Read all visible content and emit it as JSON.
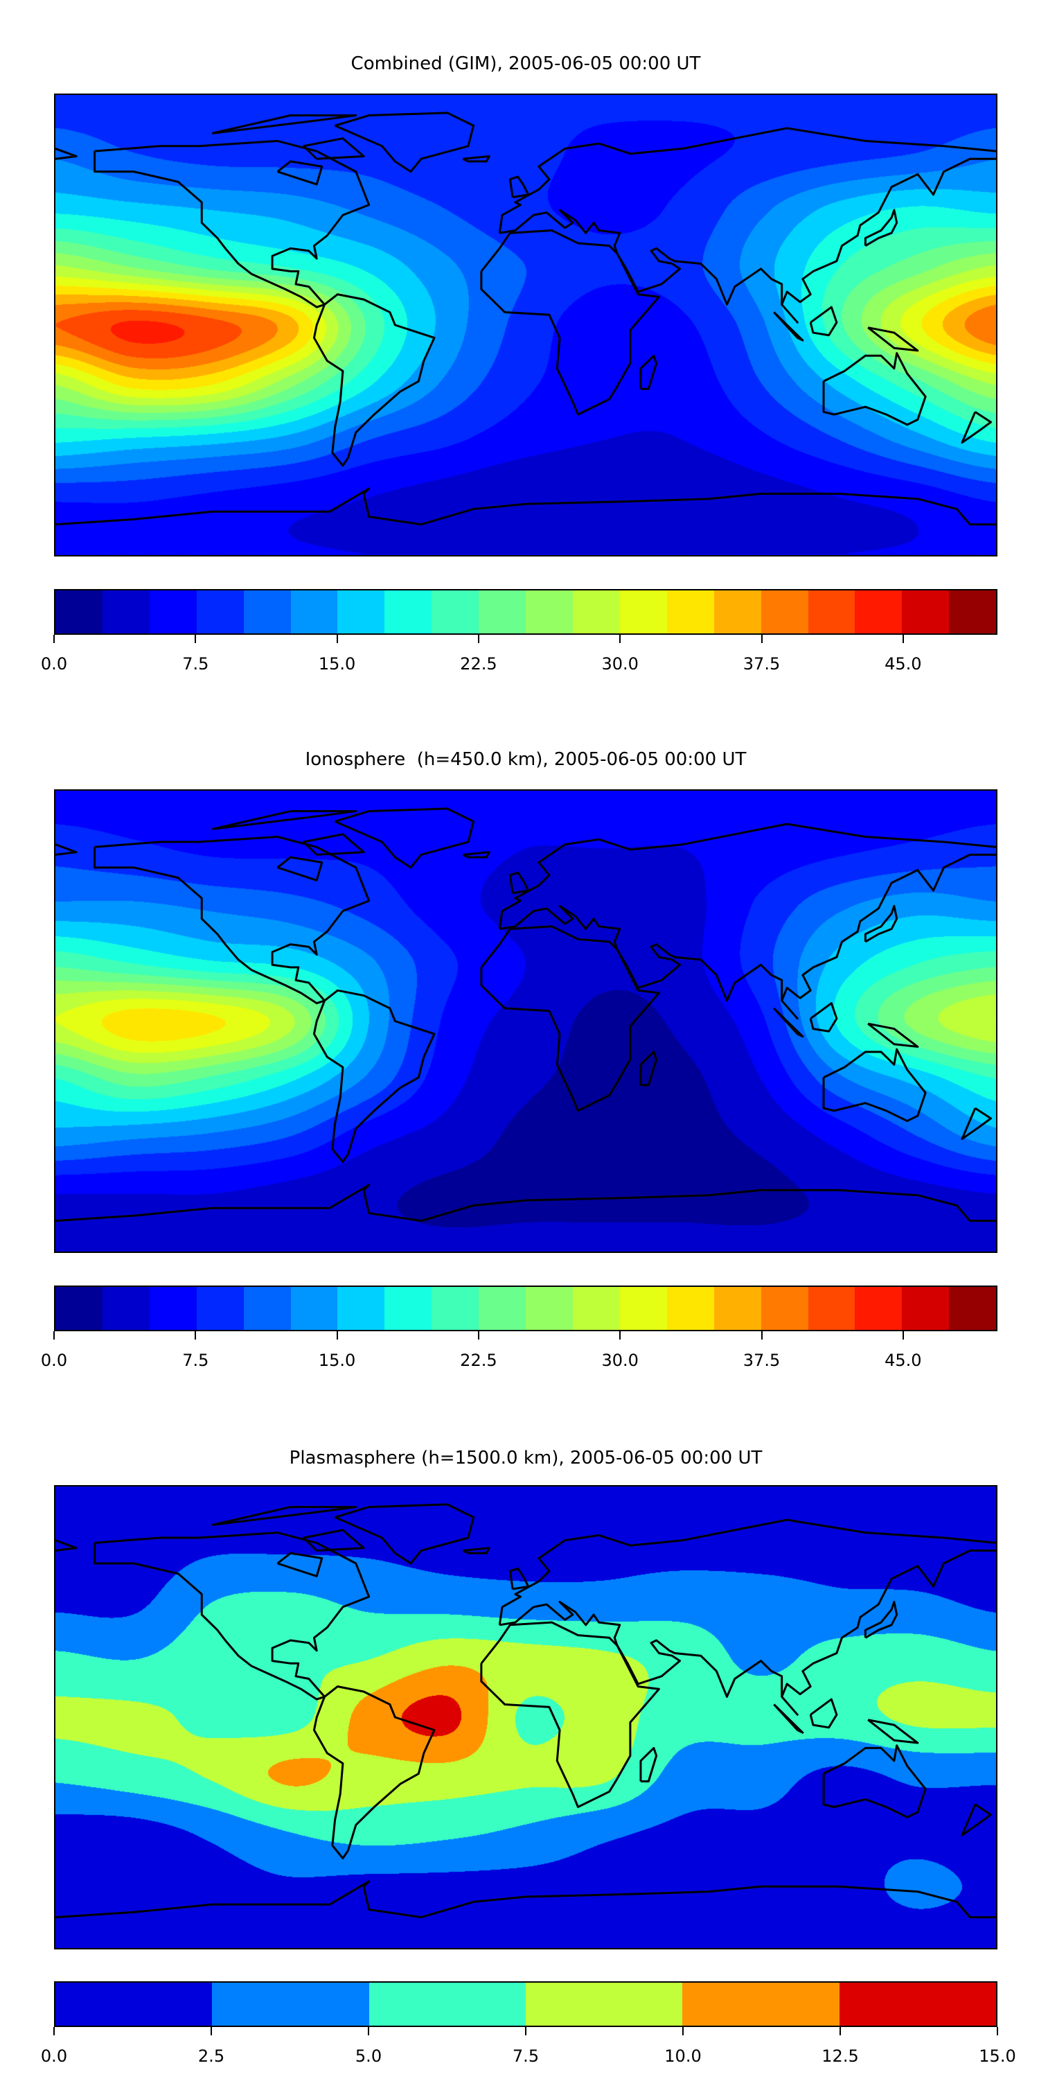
{
  "chart_data": [
    {
      "type": "heatmap",
      "title": "Combined (GIM), 2005-06-05 00:00 UT",
      "colorbar": {
        "min": 0,
        "max": 50,
        "step": 2.5,
        "colors": [
          "#000096",
          "#0000cd",
          "#0000ff",
          "#0028ff",
          "#0064ff",
          "#0096ff",
          "#00d0ff",
          "#16ffe1",
          "#40ffb7",
          "#6aff8d",
          "#94ff63",
          "#beff39",
          "#e4ff13",
          "#ffe600",
          "#ffb000",
          "#ff7a00",
          "#ff4800",
          "#ff1a00",
          "#d40000",
          "#960000"
        ],
        "tick_values": [
          0,
          7.5,
          15,
          22.5,
          30,
          37.5,
          45
        ],
        "ticks": [
          "0.0",
          "7.5",
          "15.0",
          "22.5",
          "30.0",
          "37.5",
          "45.0"
        ]
      },
      "grid": {
        "lons": [
          -180,
          -150,
          -120,
          -90,
          -60,
          -30,
          0,
          30,
          60,
          90,
          120,
          150,
          180
        ],
        "lats": [
          90,
          67.5,
          45,
          22.5,
          0,
          -22.5,
          -45,
          -67.5,
          -90
        ],
        "values": [
          [
            8,
            8,
            8,
            8,
            8,
            8,
            8,
            8,
            8,
            8,
            8,
            8,
            8
          ],
          [
            12,
            10,
            9,
            9,
            9,
            8,
            8,
            7,
            7,
            8,
            9,
            10,
            12
          ],
          [
            17,
            16,
            15,
            14,
            12,
            10,
            8,
            7,
            8,
            12,
            16,
            18,
            17
          ],
          [
            28,
            25,
            22,
            20,
            17,
            13,
            10,
            8,
            9,
            14,
            20,
            24,
            28
          ],
          [
            40,
            43,
            41,
            36,
            22,
            14,
            9,
            6,
            7,
            12,
            22,
            32,
            40
          ],
          [
            28,
            34,
            33,
            26,
            18,
            12,
            8,
            6,
            6,
            10,
            16,
            22,
            28
          ],
          [
            18,
            17,
            16,
            14,
            10,
            8,
            6,
            5,
            5,
            7,
            10,
            14,
            18
          ],
          [
            8,
            8,
            7,
            6,
            5,
            4,
            3,
            3,
            3,
            4,
            5,
            6,
            8
          ],
          [
            5,
            5,
            5,
            5,
            5,
            5,
            5,
            5,
            5,
            5,
            5,
            5,
            5
          ]
        ]
      }
    },
    {
      "type": "heatmap",
      "title": "Ionosphere  (h=450.0 km), 2005-06-05 00:00 UT",
      "colorbar": {
        "min": 0,
        "max": 50,
        "step": 2.5,
        "colors": [
          "#000096",
          "#0000cd",
          "#0000ff",
          "#0028ff",
          "#0064ff",
          "#0096ff",
          "#00d0ff",
          "#16ffe1",
          "#40ffb7",
          "#6aff8d",
          "#94ff63",
          "#beff39",
          "#e4ff13",
          "#ffe600",
          "#ffb000",
          "#ff7a00",
          "#ff4800",
          "#ff1a00",
          "#d40000",
          "#960000"
        ],
        "tick_values": [
          0,
          7.5,
          15,
          22.5,
          30,
          37.5,
          45
        ],
        "ticks": [
          "0.0",
          "7.5",
          "15.0",
          "22.5",
          "30.0",
          "37.5",
          "45.0"
        ]
      },
      "grid": {
        "lons": [
          -180,
          -150,
          -120,
          -90,
          -60,
          -30,
          0,
          30,
          60,
          90,
          120,
          150,
          180
        ],
        "lats": [
          90,
          67.5,
          45,
          22.5,
          0,
          -22.5,
          -45,
          -67.5,
          -90
        ],
        "values": [
          [
            6,
            6,
            6,
            6,
            6,
            6,
            6,
            6,
            6,
            6,
            6,
            6,
            6
          ],
          [
            9,
            8,
            7,
            7,
            7,
            6,
            5,
            5,
            5,
            6,
            7,
            8,
            9
          ],
          [
            13,
            13,
            12,
            11,
            9,
            6,
            4,
            3,
            4,
            8,
            12,
            14,
            13
          ],
          [
            22,
            20,
            18,
            17,
            13,
            8,
            5,
            3,
            4,
            9,
            16,
            20,
            22
          ],
          [
            30,
            34,
            33,
            28,
            15,
            7,
            4,
            2,
            3,
            7,
            18,
            26,
            30
          ],
          [
            20,
            24,
            22,
            18,
            12,
            6,
            3,
            2,
            2,
            5,
            12,
            16,
            20
          ],
          [
            14,
            13,
            12,
            10,
            6,
            4,
            2,
            2,
            2,
            3,
            6,
            10,
            14
          ],
          [
            5,
            5,
            5,
            4,
            3,
            2,
            2,
            2,
            2,
            2,
            3,
            4,
            5
          ],
          [
            3,
            3,
            3,
            3,
            3,
            3,
            3,
            3,
            3,
            3,
            3,
            3,
            3
          ]
        ]
      }
    },
    {
      "type": "heatmap",
      "title": "Plasmasphere (h=1500.0 km), 2005-06-05 00:00 UT",
      "colorbar": {
        "min": 0,
        "max": 15,
        "step": 2.5,
        "colors": [
          "#0000dc",
          "#0080ff",
          "#39ffc3",
          "#c1ff3a",
          "#ff9400",
          "#dd0000"
        ],
        "tick_values": [
          0,
          2.5,
          5,
          7.5,
          10,
          12.5,
          15
        ],
        "ticks": [
          "0.0",
          "2.5",
          "5.0",
          "7.5",
          "10.0",
          "12.5",
          "15.0"
        ]
      },
      "grid": {
        "lons": [
          -180,
          -150,
          -120,
          -90,
          -60,
          -30,
          0,
          30,
          60,
          90,
          120,
          150,
          180
        ],
        "lats": [
          90,
          67.5,
          45,
          22.5,
          0,
          -22.5,
          -45,
          -67.5,
          -90
        ],
        "values": [
          [
            1,
            1,
            1,
            1,
            1,
            1,
            1,
            1,
            1,
            1,
            1,
            1,
            1
          ],
          [
            1,
            1,
            2,
            2,
            2,
            1.5,
            1.5,
            1.5,
            1.5,
            1.5,
            1.5,
            1,
            1
          ],
          [
            2,
            2,
            5,
            5.5,
            4.5,
            4,
            3.5,
            3.5,
            4,
            3.5,
            3,
            3,
            2
          ],
          [
            5.5,
            5,
            6.5,
            7,
            7.5,
            9.5,
            8.5,
            8,
            6.5,
            4.5,
            6,
            6.5,
            5.5
          ],
          [
            8,
            8,
            7,
            6.5,
            11,
            13.2,
            7,
            8.5,
            6,
            6,
            6.5,
            8,
            8
          ],
          [
            5.5,
            6.5,
            7.8,
            10.5,
            9,
            9,
            8,
            8,
            4,
            3.5,
            2,
            3,
            3
          ],
          [
            1.5,
            1.5,
            3,
            5,
            6,
            5.5,
            4.5,
            3,
            2,
            2,
            2,
            2,
            1.5
          ],
          [
            2,
            1.5,
            1.5,
            2,
            1.5,
            1.5,
            1.5,
            1.5,
            1.5,
            1.5,
            1.5,
            3,
            2
          ],
          [
            1,
            1,
            1,
            1,
            1,
            1,
            1,
            1,
            1,
            1,
            1,
            1,
            1
          ]
        ]
      }
    }
  ]
}
